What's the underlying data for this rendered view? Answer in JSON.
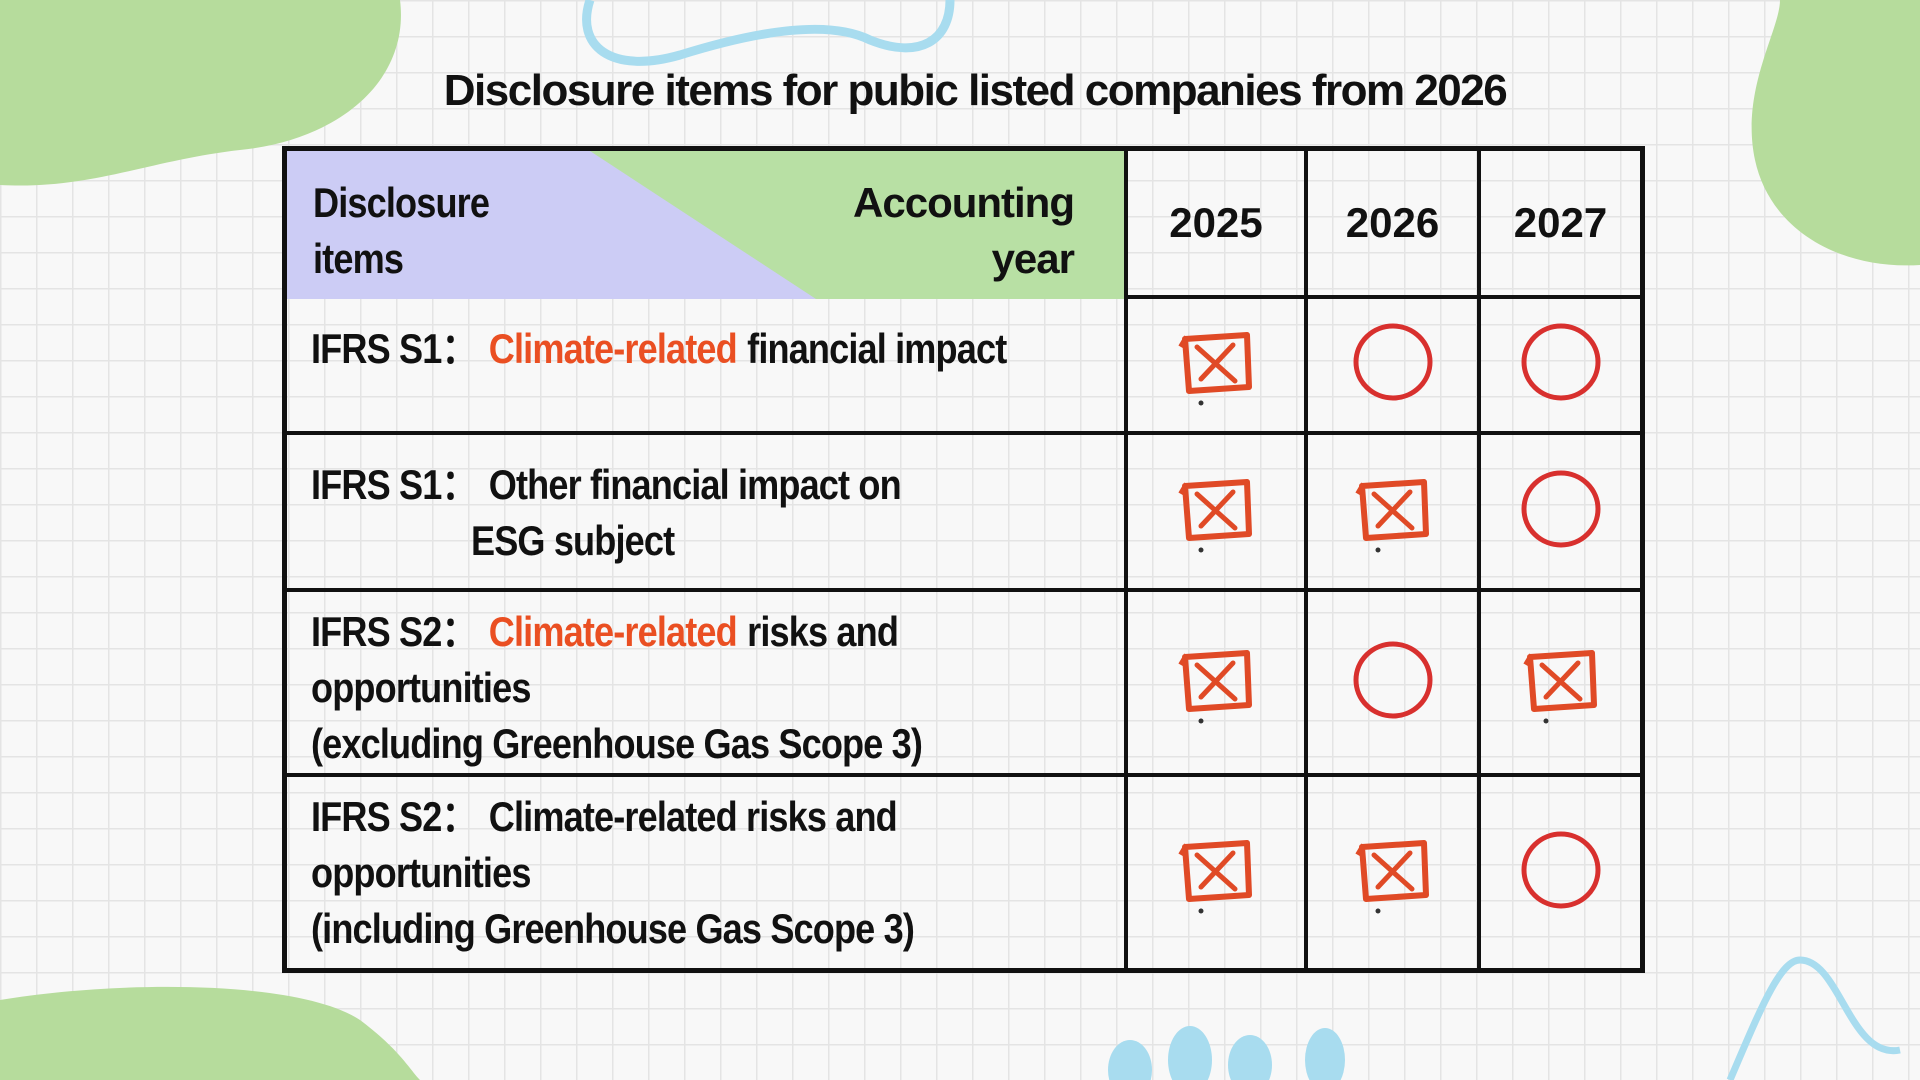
{
  "title": "Disclosure items for pubic listed companies from 2026",
  "table": {
    "header": {
      "items": "Disclosure items",
      "year": "Accounting year",
      "years": [
        "2025",
        "2026",
        "2027"
      ]
    },
    "rows": [
      {
        "label": "IFRS S1：",
        "indent": false,
        "required": [
          false,
          true,
          true
        ],
        "lines": [
          [
            {
              "text": "Climate-related",
              "highlight": true
            },
            {
              "text": "financial impact",
              "highlight": false
            }
          ]
        ]
      },
      {
        "label": "IFRS S1：",
        "indent": true,
        "required": [
          false,
          false,
          true
        ],
        "lines": [
          [
            {
              "text": "Other financial impact on",
              "highlight": false
            }
          ],
          [
            {
              "text": "ESG subject",
              "highlight": false
            }
          ]
        ]
      },
      {
        "label": "IFRS S2：",
        "indent": false,
        "required": [
          false,
          true,
          false
        ],
        "lines": [
          [
            {
              "text": "Climate-related",
              "highlight": true
            },
            {
              "text": "risks and",
              "highlight": false
            }
          ],
          [
            {
              "text": "opportunities",
              "highlight": false
            }
          ],
          [
            {
              "text": "(excluding Greenhouse Gas Scope 3)",
              "highlight": false
            }
          ]
        ]
      },
      {
        "label": "IFRS S2：",
        "indent": false,
        "required": [
          false,
          false,
          true
        ],
        "lines": [
          [
            {
              "text": "Climate-related risks and",
              "highlight": false
            }
          ],
          [
            {
              "text": "opportunities",
              "highlight": false
            }
          ],
          [
            {
              "text": "(including Greenhouse Gas Scope 3)",
              "highlight": false
            }
          ]
        ]
      }
    ]
  }
}
